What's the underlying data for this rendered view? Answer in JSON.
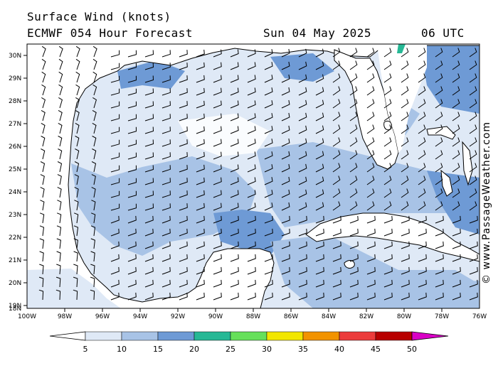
{
  "header": {
    "title": "Surface Wind (knots)",
    "subtitle": "ECMWF 054 Hour Forecast",
    "date": "Sun 04 May 2025",
    "time": "06 UTC"
  },
  "map": {
    "lat_labels": [
      "30N",
      "29N",
      "28N",
      "27N",
      "26N",
      "25N",
      "24N",
      "23N",
      "22N",
      "21N",
      "20N",
      "19N",
      "18N"
    ],
    "lon_labels": [
      "100W",
      "98W",
      "96W",
      "94W",
      "92W",
      "90W",
      "88W",
      "86W",
      "84W",
      "82W",
      "80W",
      "78W",
      "76W"
    ],
    "watermark": "© www.PassageWeather.com",
    "land_color": "#ffffff",
    "wind_shades": [
      "#dfe9f6",
      "#a8c3e6",
      "#6e9ad5"
    ]
  },
  "colorbar": {
    "labels": [
      "5",
      "10",
      "15",
      "20",
      "25",
      "30",
      "35",
      "40",
      "45",
      "50"
    ],
    "colors": [
      "#ffffff",
      "#dfe9f6",
      "#a8c3e6",
      "#6e9ad5",
      "#26b895",
      "#66e05a",
      "#f2e600",
      "#f29300",
      "#ec3b3b",
      "#b80000",
      "#d900c6"
    ]
  }
}
